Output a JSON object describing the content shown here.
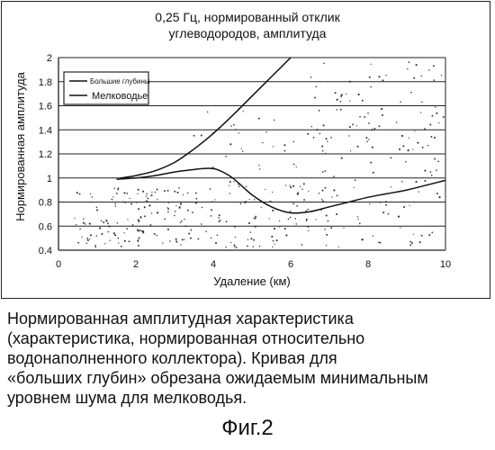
{
  "chart_data": {
    "type": "line",
    "title_lines": [
      "0,25 Гц, нормированный отклик",
      "углеводородов, амплитуда"
    ],
    "xlabel": "Удаление (км)",
    "ylabel": "Нормированная амплитуда",
    "xlim": [
      0,
      10
    ],
    "ylim": [
      0.4,
      2.0
    ],
    "x_ticks": [
      "0",
      "2",
      "4",
      "6",
      "8",
      "10"
    ],
    "y_ticks": [
      "0.4",
      "0.6",
      "0.8",
      "1",
      "1.2",
      "1.4",
      "1.6",
      "1.8",
      "2"
    ],
    "grid": "horizontal",
    "legend_position": "top-left",
    "series": [
      {
        "name": "Большие глубины",
        "x": [
          1.6,
          2.0,
          2.5,
          3.0,
          3.5,
          4.0,
          4.5,
          5.0,
          5.5,
          6.0
        ],
        "y": [
          1.0,
          1.02,
          1.06,
          1.13,
          1.24,
          1.37,
          1.52,
          1.68,
          1.84,
          2.0
        ]
      },
      {
        "name": "Мелководье",
        "x": [
          1.5,
          2.0,
          2.5,
          3.0,
          3.5,
          3.8,
          4.1,
          4.5,
          5.0,
          5.5,
          6.0,
          6.5,
          7.0,
          7.5,
          8.0,
          8.5,
          9.0,
          9.5,
          10.0
        ],
        "y": [
          0.99,
          1.0,
          1.02,
          1.05,
          1.07,
          1.08,
          1.07,
          1.0,
          0.86,
          0.76,
          0.71,
          0.72,
          0.76,
          0.8,
          0.84,
          0.87,
          0.9,
          0.94,
          0.98
        ]
      }
    ]
  },
  "caption": "Нормированная амплитудная характеристика\n(характеристика, нормированная относительно\nводонаполненного коллектора). Кривая для\n«больших глубин» обрезана ожидаемым минимальным\nуровнем шума для мелководья.",
  "figure_label": "Фиг.2"
}
